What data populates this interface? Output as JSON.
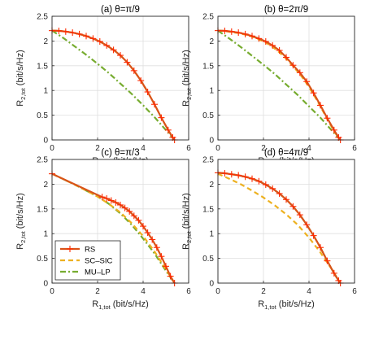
{
  "colors": {
    "rs": "#d95319",
    "rs_marker": "#ff2a00",
    "sc_sic": "#edb120",
    "mu_lp": "#77ac30",
    "grid": "#dfdfdf",
    "axis": "#262626"
  },
  "axis_text": {
    "x_main": "R",
    "x_sub": "1,tot",
    "x_unit": " (bit/s/Hz)",
    "y_main": "R",
    "y_sub": "2,tot",
    "y_unit": " (bit/s/Hz)"
  },
  "chart_data": [
    {
      "type": "line",
      "title": "(a) θ=π/9",
      "xlim": [
        0,
        6
      ],
      "ylim": [
        0,
        2.5
      ],
      "xticks": [
        "0",
        "2",
        "4",
        "6"
      ],
      "yticks": [
        "0",
        "0.5",
        "1",
        "1.5",
        "2",
        "2.5"
      ],
      "grid": true,
      "series": [
        {
          "name": "RS",
          "x": [
            0,
            0.3,
            0.6,
            0.9,
            1.2,
            1.5,
            1.8,
            2.1,
            2.4,
            2.7,
            3.0,
            3.3,
            3.6,
            3.9,
            4.2,
            4.5,
            4.8,
            5.1,
            5.3,
            5.38
          ],
          "y": [
            2.21,
            2.205,
            2.19,
            2.17,
            2.14,
            2.1,
            2.05,
            1.99,
            1.91,
            1.82,
            1.71,
            1.57,
            1.4,
            1.2,
            0.97,
            0.72,
            0.45,
            0.2,
            0.05,
            0
          ]
        },
        {
          "name": "SC–SIC",
          "x": [
            0,
            0.3,
            0.6,
            0.9,
            1.2,
            1.5,
            1.8,
            2.1,
            2.4,
            2.7,
            3.0,
            3.3,
            3.6,
            3.9,
            4.2,
            4.5,
            4.8,
            5.1,
            5.3,
            5.38
          ],
          "y": [
            2.21,
            2.205,
            2.19,
            2.17,
            2.14,
            2.1,
            2.05,
            1.99,
            1.91,
            1.82,
            1.71,
            1.57,
            1.4,
            1.2,
            0.97,
            0.72,
            0.45,
            0.2,
            0.05,
            0
          ]
        },
        {
          "name": "MU–LP",
          "x": [
            0,
            0.5,
            1.0,
            1.5,
            2.0,
            2.5,
            3.0,
            3.5,
            4.0,
            4.5,
            5.0,
            5.38
          ],
          "y": [
            2.21,
            2.06,
            1.89,
            1.72,
            1.54,
            1.35,
            1.14,
            0.93,
            0.7,
            0.46,
            0.2,
            0
          ]
        }
      ]
    },
    {
      "type": "line",
      "title": "(b) θ=2π/9",
      "xlim": [
        0,
        6
      ],
      "ylim": [
        0,
        2.5
      ],
      "xticks": [
        "0",
        "2",
        "4",
        "6"
      ],
      "yticks": [
        "0",
        "0.5",
        "1",
        "1.5",
        "2",
        "2.5"
      ],
      "grid": true,
      "series": [
        {
          "name": "RS",
          "x": [
            0,
            0.3,
            0.6,
            0.9,
            1.2,
            1.5,
            1.8,
            2.1,
            2.4,
            2.7,
            3.0,
            3.3,
            3.6,
            3.9,
            4.2,
            4.5,
            4.8,
            5.1,
            5.3,
            5.38
          ],
          "y": [
            2.21,
            2.205,
            2.19,
            2.17,
            2.14,
            2.1,
            2.05,
            1.99,
            1.91,
            1.81,
            1.67,
            1.51,
            1.36,
            1.18,
            0.95,
            0.7,
            0.44,
            0.2,
            0.05,
            0
          ]
        },
        {
          "name": "SC–SIC",
          "x": [
            0,
            0.3,
            0.6,
            0.9,
            1.2,
            1.5,
            1.8,
            2.1,
            2.4,
            2.7,
            3.0,
            3.3,
            3.6,
            3.9,
            4.2,
            4.5,
            4.8,
            5.1,
            5.3,
            5.38
          ],
          "y": [
            2.21,
            2.2,
            2.18,
            2.16,
            2.13,
            2.09,
            2.03,
            1.97,
            1.88,
            1.77,
            1.64,
            1.49,
            1.33,
            1.14,
            0.92,
            0.68,
            0.42,
            0.18,
            0.04,
            0
          ]
        },
        {
          "name": "MU–LP",
          "x": [
            0,
            0.5,
            1.0,
            1.5,
            2.0,
            2.5,
            3.0,
            3.5,
            4.0,
            4.5,
            5.0,
            5.38
          ],
          "y": [
            2.21,
            2.05,
            1.88,
            1.7,
            1.52,
            1.33,
            1.12,
            0.91,
            0.68,
            0.45,
            0.19,
            0
          ]
        }
      ]
    },
    {
      "type": "line",
      "title": "(c) θ=π/3",
      "xlim": [
        0,
        6
      ],
      "ylim": [
        0,
        2.5
      ],
      "xticks": [
        "0",
        "2",
        "4",
        "6"
      ],
      "yticks": [
        "0",
        "0.5",
        "1",
        "1.5",
        "2",
        "2.5"
      ],
      "grid": true,
      "legend": {
        "placement": "bottom-left",
        "entries": [
          "RS",
          "SC–SIC",
          "MU–LP"
        ]
      },
      "series": [
        {
          "name": "RS",
          "x": [
            0,
            2.2,
            2.4,
            2.6,
            2.8,
            3.0,
            3.2,
            3.4,
            3.6,
            3.8,
            4.0,
            4.2,
            4.4,
            4.6,
            4.8,
            5.0,
            5.2,
            5.38
          ],
          "y": [
            2.21,
            1.74,
            1.71,
            1.67,
            1.63,
            1.58,
            1.52,
            1.45,
            1.36,
            1.27,
            1.15,
            1.02,
            0.88,
            0.72,
            0.54,
            0.34,
            0.14,
            0
          ]
        },
        {
          "name": "SC–SIC",
          "x": [
            0,
            0.5,
            1.0,
            1.5,
            2.0,
            2.5,
            3.0,
            3.5,
            4.0,
            4.5,
            5.0,
            5.38
          ],
          "y": [
            2.21,
            2.1,
            1.99,
            1.87,
            1.75,
            1.6,
            1.43,
            1.21,
            0.95,
            0.64,
            0.28,
            0
          ]
        },
        {
          "name": "MU–LP",
          "x": [
            0,
            0.5,
            1.0,
            1.5,
            2.0,
            2.5,
            3.0,
            3.5,
            4.0,
            4.5,
            5.0,
            5.38
          ],
          "y": [
            2.21,
            2.1,
            1.99,
            1.87,
            1.75,
            1.6,
            1.41,
            1.18,
            0.9,
            0.6,
            0.25,
            0
          ]
        }
      ]
    },
    {
      "type": "line",
      "title": "(d) θ=4π/9",
      "xlim": [
        0,
        6
      ],
      "ylim": [
        0,
        2.5
      ],
      "xticks": [
        "0",
        "2",
        "4",
        "6"
      ],
      "yticks": [
        "0",
        "0.5",
        "1",
        "1.5",
        "2",
        "2.5"
      ],
      "grid": true,
      "series": [
        {
          "name": "RS",
          "x": [
            0,
            0.3,
            0.6,
            0.9,
            1.2,
            1.5,
            1.8,
            2.1,
            2.4,
            2.7,
            3.0,
            3.3,
            3.6,
            3.9,
            4.2,
            4.5,
            4.8,
            5.1,
            5.3,
            5.38
          ],
          "y": [
            2.23,
            2.22,
            2.2,
            2.18,
            2.15,
            2.11,
            2.06,
            1.99,
            1.91,
            1.81,
            1.69,
            1.55,
            1.38,
            1.18,
            0.96,
            0.72,
            0.45,
            0.2,
            0.05,
            0
          ]
        },
        {
          "name": "SC–SIC",
          "x": [
            0,
            0.5,
            1.0,
            1.5,
            2.0,
            2.5,
            3.0,
            3.5,
            4.0,
            4.5,
            5.0,
            5.38
          ],
          "y": [
            2.21,
            2.11,
            2.0,
            1.87,
            1.73,
            1.57,
            1.39,
            1.18,
            0.92,
            0.62,
            0.28,
            0
          ]
        },
        {
          "name": "MU–LP",
          "x": [
            0,
            0.3,
            0.6,
            0.9,
            1.2,
            1.5,
            1.8,
            2.1,
            2.4,
            2.7,
            3.0,
            3.3,
            3.6,
            3.9,
            4.2,
            4.5,
            4.8,
            5.1,
            5.3,
            5.38
          ],
          "y": [
            2.23,
            2.22,
            2.2,
            2.18,
            2.15,
            2.11,
            2.06,
            1.99,
            1.91,
            1.81,
            1.69,
            1.55,
            1.38,
            1.18,
            0.96,
            0.72,
            0.45,
            0.2,
            0.05,
            0
          ]
        }
      ]
    }
  ]
}
